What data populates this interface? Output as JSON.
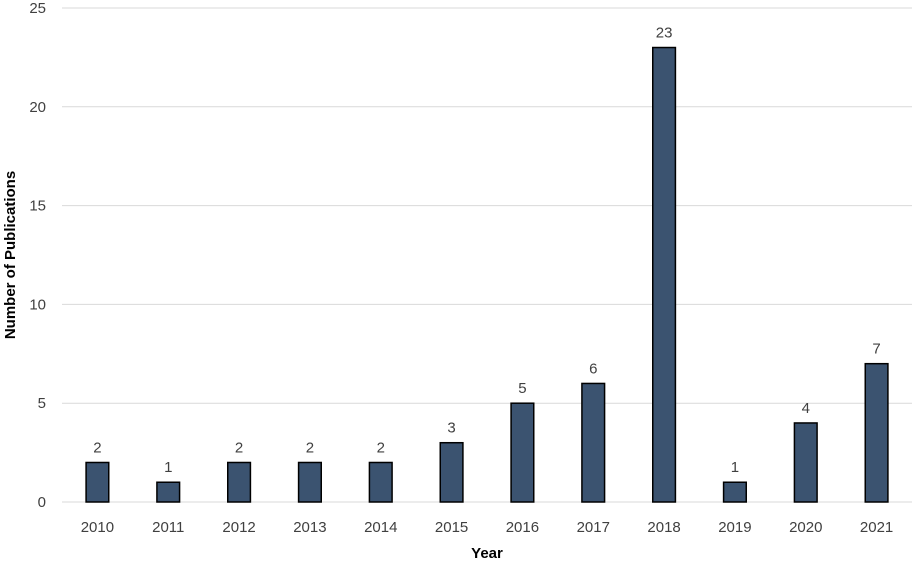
{
  "chart_data": {
    "type": "bar",
    "categories": [
      "2010",
      "2011",
      "2012",
      "2013",
      "2014",
      "2015",
      "2016",
      "2017",
      "2018",
      "2019",
      "2020",
      "2021"
    ],
    "values": [
      2,
      1,
      2,
      2,
      2,
      3,
      5,
      6,
      23,
      1,
      4,
      7
    ],
    "data_labels": [
      "2",
      "1",
      "2",
      "2",
      "2",
      "3",
      "5",
      "6",
      "23",
      "1",
      "4",
      "7"
    ],
    "title": "",
    "xlabel": "Year",
    "ylabel": "Number of Publications",
    "ylim": [
      0,
      25
    ],
    "yticks": [
      "0",
      "5",
      "10",
      "15",
      "20",
      "25"
    ],
    "grid": true,
    "legend": "none",
    "bar_color": "#3b5370"
  }
}
